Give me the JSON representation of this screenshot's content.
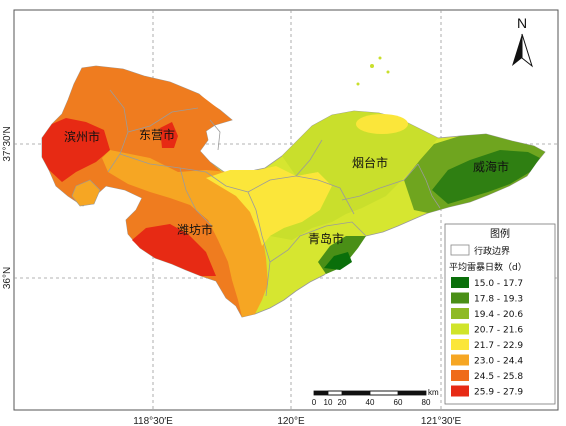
{
  "map": {
    "ticks_x": [
      "118°30′E",
      "120°E",
      "121°30′E"
    ],
    "ticks_y": [
      "37°30′N",
      "36°N"
    ],
    "north_label": "N",
    "cities": {
      "binzhou": "滨州市",
      "dongying": "东营市",
      "weifang": "潍坊市",
      "qingdao": "青岛市",
      "yantai": "烟台市",
      "weihai": "威海市"
    },
    "scale": {
      "labels": [
        "0",
        "10",
        "20",
        "40",
        "60",
        "80"
      ],
      "unit": "km"
    }
  },
  "legend": {
    "title": "图例",
    "boundary_label": "行政边界",
    "subtitle": "平均雷暴日数（d）",
    "classes": [
      {
        "label": "15.0 - 17.7",
        "color": "#0a6f0a"
      },
      {
        "label": "17.8 - 19.3",
        "color": "#4a8f16"
      },
      {
        "label": "19.4 - 20.6",
        "color": "#8fba24"
      },
      {
        "label": "20.7 - 21.6",
        "color": "#d0e42a"
      },
      {
        "label": "21.7 - 22.9",
        "color": "#fbe63a"
      },
      {
        "label": "23.0 - 24.4",
        "color": "#f6a623"
      },
      {
        "label": "24.5 - 25.8",
        "color": "#ef6c1a"
      },
      {
        "label": "25.9 - 27.9",
        "color": "#e72a14"
      }
    ]
  }
}
